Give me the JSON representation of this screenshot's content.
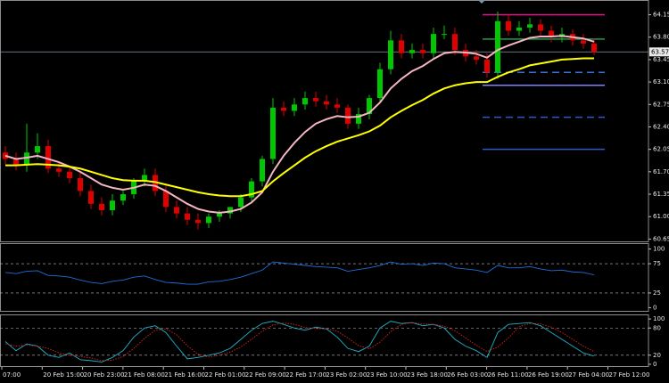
{
  "chart_data": [
    {
      "type": "candlestick",
      "ylim": [
        60.6,
        64.38
      ],
      "yticks": [
        {
          "value": 64.15,
          "label": "64.15"
        },
        {
          "value": 63.8,
          "label": "63.80"
        },
        {
          "value": 63.45,
          "label": "63.45"
        },
        {
          "value": 63.1,
          "label": "63.10"
        },
        {
          "value": 62.75,
          "label": "62.75"
        },
        {
          "value": 62.4,
          "label": "62.40"
        },
        {
          "value": 62.05,
          "label": "62.05"
        },
        {
          "value": 61.7,
          "label": "61.70"
        },
        {
          "value": 61.35,
          "label": "61.35"
        },
        {
          "value": 61.0,
          "label": "61.00"
        },
        {
          "value": 60.65,
          "label": "60.65"
        }
      ],
      "up_color": "#00c800",
      "down_color": "#e00000",
      "open": [
        62.0,
        61.9,
        61.8,
        62.0,
        62.1,
        61.75,
        61.7,
        61.6,
        61.4,
        61.2,
        61.1,
        61.25,
        61.35,
        61.55,
        61.65,
        61.4,
        61.15,
        61.05,
        60.95,
        60.9,
        61.0,
        61.05,
        61.15,
        61.3,
        61.55,
        61.9,
        62.7,
        62.65,
        62.75,
        62.85,
        62.8,
        62.75,
        62.7,
        62.45,
        62.6,
        62.85,
        63.3,
        63.75,
        63.55,
        63.6,
        63.55,
        63.85,
        63.85,
        63.6,
        63.5,
        63.45,
        63.25,
        64.05,
        63.9,
        63.95,
        64.0,
        63.9,
        63.8,
        63.85,
        63.75,
        63.7
      ],
      "high": [
        62.1,
        62.0,
        62.45,
        62.3,
        62.2,
        61.85,
        61.8,
        61.7,
        61.5,
        61.3,
        61.35,
        61.4,
        61.6,
        61.75,
        61.75,
        61.5,
        61.25,
        61.15,
        61.05,
        61.05,
        61.1,
        61.15,
        61.35,
        61.6,
        61.95,
        62.85,
        62.8,
        62.85,
        62.95,
        62.95,
        62.9,
        62.85,
        62.75,
        62.7,
        62.9,
        63.4,
        63.9,
        63.85,
        63.7,
        63.7,
        63.95,
        63.98,
        63.95,
        63.7,
        63.6,
        63.55,
        64.2,
        64.15,
        64.05,
        64.1,
        64.08,
        63.98,
        63.95,
        63.92,
        63.85,
        63.78
      ],
      "low": [
        61.82,
        61.72,
        61.7,
        61.9,
        61.68,
        61.62,
        61.52,
        61.32,
        61.12,
        61.02,
        61.02,
        61.18,
        61.28,
        61.47,
        61.32,
        61.07,
        60.97,
        60.87,
        60.8,
        60.82,
        60.92,
        60.97,
        61.07,
        61.22,
        61.47,
        61.82,
        62.57,
        62.57,
        62.67,
        62.72,
        62.67,
        62.62,
        62.37,
        62.37,
        62.52,
        62.77,
        63.22,
        63.47,
        63.47,
        63.47,
        63.47,
        63.77,
        63.52,
        63.42,
        63.37,
        63.17,
        63.15,
        63.82,
        63.82,
        63.87,
        63.82,
        63.72,
        63.72,
        63.67,
        63.62,
        63.52
      ],
      "close": [
        61.9,
        61.8,
        62.0,
        62.1,
        61.75,
        61.7,
        61.6,
        61.4,
        61.2,
        61.1,
        61.25,
        61.35,
        61.55,
        61.65,
        61.4,
        61.15,
        61.05,
        60.95,
        60.9,
        61.0,
        61.05,
        61.15,
        61.3,
        61.55,
        61.9,
        62.7,
        62.65,
        62.75,
        62.85,
        62.8,
        62.75,
        62.7,
        62.45,
        62.6,
        62.85,
        63.3,
        63.75,
        63.55,
        63.6,
        63.55,
        63.85,
        63.85,
        63.6,
        63.5,
        63.45,
        63.25,
        64.05,
        63.9,
        63.95,
        64.0,
        63.9,
        63.8,
        63.85,
        63.75,
        63.7,
        63.57
      ],
      "series": [
        {
          "color": "#f4b6c2",
          "values": [
            61.95,
            61.9,
            61.92,
            61.95,
            61.9,
            61.85,
            61.78,
            61.7,
            61.6,
            61.5,
            61.45,
            61.42,
            61.45,
            61.5,
            61.48,
            61.4,
            61.3,
            61.2,
            61.12,
            61.08,
            61.06,
            61.08,
            61.12,
            61.22,
            61.38,
            61.7,
            61.95,
            62.15,
            62.32,
            62.45,
            62.52,
            62.57,
            62.55,
            62.56,
            62.62,
            62.78,
            63.0,
            63.15,
            63.27,
            63.35,
            63.46,
            63.55,
            63.57,
            63.56,
            63.54,
            63.48,
            63.6,
            63.67,
            63.73,
            63.79,
            63.81,
            63.81,
            63.82,
            63.8,
            63.78,
            63.73
          ]
        },
        {
          "color": "#ffff00",
          "values": [
            61.8,
            61.8,
            61.81,
            61.82,
            61.81,
            61.8,
            61.78,
            61.75,
            61.7,
            61.65,
            61.6,
            61.57,
            61.56,
            61.56,
            61.54,
            61.5,
            61.46,
            61.42,
            61.38,
            61.35,
            61.33,
            61.32,
            61.32,
            61.35,
            61.4,
            61.55,
            61.68,
            61.8,
            61.92,
            62.02,
            62.1,
            62.17,
            62.22,
            62.27,
            62.33,
            62.42,
            62.55,
            62.65,
            62.74,
            62.82,
            62.92,
            63.0,
            63.05,
            63.08,
            63.1,
            63.1,
            63.18,
            63.25,
            63.3,
            63.36,
            63.39,
            63.42,
            63.45,
            63.46,
            63.47,
            63.47
          ]
        }
      ],
      "levels": [
        {
          "value": 64.15,
          "color": "#e0148c",
          "dash": false
        },
        {
          "value": 63.77,
          "color": "#22a04a",
          "dash": false
        },
        {
          "value": 63.25,
          "color": "#3a6ed8",
          "dash": true
        },
        {
          "value": 63.05,
          "color": "#8080ff",
          "dash": false
        },
        {
          "value": 62.55,
          "color": "#2a5bc8",
          "dash": true
        },
        {
          "value": 62.05,
          "color": "#2a5bc8",
          "dash": false
        }
      ],
      "current_price": 63.57
    },
    {
      "type": "line",
      "ylim": [
        -7,
        110
      ],
      "yticks": [
        100,
        75,
        25,
        0
      ],
      "grid": true,
      "series": [
        {
          "color": "#1e6fd9",
          "dash": false,
          "values": [
            60,
            58,
            62,
            63,
            55,
            54,
            52,
            47,
            43,
            41,
            45,
            47,
            52,
            54,
            48,
            43,
            42,
            40,
            40,
            44,
            45,
            48,
            52,
            58,
            64,
            78,
            76,
            74,
            72,
            70,
            69,
            68,
            62,
            65,
            68,
            72,
            78,
            74,
            75,
            72,
            76,
            75,
            68,
            66,
            64,
            60,
            72,
            68,
            68,
            70,
            66,
            63,
            64,
            61,
            60,
            56
          ]
        }
      ]
    },
    {
      "type": "line",
      "ylim": [
        -6,
        110
      ],
      "yticks": [
        100,
        80,
        20,
        0
      ],
      "grid": true,
      "series": [
        {
          "color": "#20b2c8",
          "dash": false,
          "values": [
            50,
            30,
            45,
            40,
            20,
            15,
            25,
            10,
            8,
            5,
            15,
            30,
            60,
            80,
            85,
            70,
            40,
            12,
            15,
            20,
            25,
            35,
            55,
            75,
            90,
            95,
            88,
            80,
            75,
            82,
            78,
            60,
            35,
            28,
            40,
            80,
            95,
            90,
            92,
            85,
            88,
            80,
            55,
            40,
            30,
            15,
            70,
            88,
            90,
            92,
            85,
            70,
            55,
            40,
            25,
            18
          ]
        },
        {
          "color": "#e02020",
          "dash": true,
          "values": [
            45,
            40,
            42,
            40,
            35,
            25,
            20,
            17,
            14,
            8,
            9,
            17,
            35,
            57,
            75,
            78,
            65,
            41,
            22,
            16,
            20,
            27,
            38,
            55,
            73,
            87,
            91,
            88,
            81,
            79,
            78,
            73,
            58,
            41,
            34,
            49,
            72,
            88,
            92,
            89,
            88,
            84,
            74,
            58,
            42,
            28,
            38,
            58,
            83,
            90,
            89,
            82,
            70,
            55,
            40,
            28
          ]
        }
      ],
      "x_labels": [
        "07:00",
        "20 Feb 15:00",
        "20 Feb 23:00",
        "21 Feb 08:00",
        "21 Feb 16:00",
        "22 Feb 01:00",
        "22 Feb 09:00",
        "22 Feb 17:00",
        "23 Feb 02:00",
        "23 Feb 10:00",
        "23 Feb 18:00",
        "26 Feb 03:00",
        "26 Feb 11:00",
        "26 Feb 19:00",
        "27 Feb 04:00",
        "27 Feb 12:00"
      ]
    }
  ]
}
